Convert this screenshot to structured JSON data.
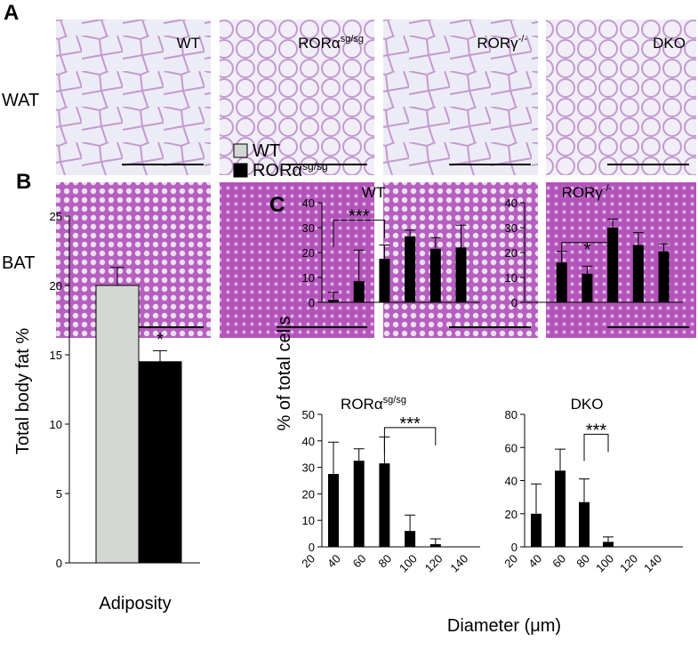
{
  "panel_a": {
    "letter": "A",
    "columns": [
      {
        "name": "WT"
      },
      {
        "name": "RORα",
        "sup": "sg/sg"
      },
      {
        "name": "RORγ",
        "sup": "-/-"
      },
      {
        "name": "DKO"
      }
    ],
    "rows": [
      "WAT",
      "BAT"
    ]
  },
  "panel_c": {
    "letter": "C",
    "ylabel": "% of total cells",
    "xlabel": "Diameter (μm)"
  },
  "chart_data": [
    {
      "type": "bar",
      "panel": "B",
      "ylabel": "Total body fat %",
      "categories": [
        "Adiposity"
      ],
      "series": [
        {
          "name": "WT",
          "color": "#d3d7d3",
          "values": [
            20
          ],
          "errors": [
            1.3
          ]
        },
        {
          "name": "RORα",
          "sup": "sg/sg",
          "color": "#000000",
          "values": [
            14.5
          ],
          "errors": [
            0.8
          ],
          "annotation": "*"
        }
      ],
      "ylim": [
        0,
        25
      ],
      "yticks": [
        0,
        5,
        10,
        15,
        20,
        25
      ]
    },
    {
      "type": "bar",
      "title": "WT",
      "color": "#000000",
      "values": [
        1,
        8.5,
        17.5,
        26.5,
        21.5,
        22
      ],
      "errors": [
        3,
        12.5,
        5.5,
        2.5,
        4.5,
        9
      ],
      "annotation": "***",
      "ylim": [
        0,
        40
      ],
      "yticks": [
        0,
        10,
        20,
        30,
        40
      ]
    },
    {
      "type": "bar",
      "title": "RORγ",
      "title_sup": "-/-",
      "color": "#000000",
      "values": [
        null,
        16,
        11.5,
        30,
        23,
        20.5
      ],
      "errors": [
        null,
        4.5,
        3,
        3.5,
        5,
        3
      ],
      "annotation": "*",
      "ylim": [
        0,
        40
      ],
      "yticks": [
        0,
        10,
        20,
        30,
        40
      ]
    },
    {
      "type": "bar",
      "title": "RORα",
      "title_sup": "sg/sg",
      "color": "#000000",
      "categories": [
        20,
        40,
        60,
        80,
        100,
        120,
        140
      ],
      "values": [
        27.5,
        32.5,
        31.5,
        6,
        1,
        null,
        null
      ],
      "errors": [
        12,
        4.5,
        10,
        6,
        2,
        null,
        null
      ],
      "annotation": "***",
      "ylim": [
        0,
        50
      ],
      "yticks": [
        0,
        10,
        20,
        30,
        40,
        50
      ]
    },
    {
      "type": "bar",
      "title": "DKO",
      "color": "#000000",
      "categories": [
        20,
        40,
        60,
        80,
        100,
        120,
        140
      ],
      "values": [
        20,
        46,
        27,
        3,
        null,
        null,
        null
      ],
      "errors": [
        18,
        13,
        14,
        3,
        null,
        null,
        null
      ],
      "annotation": "***",
      "ylim": [
        0,
        80
      ],
      "yticks": [
        0,
        20,
        40,
        60,
        80
      ]
    }
  ]
}
